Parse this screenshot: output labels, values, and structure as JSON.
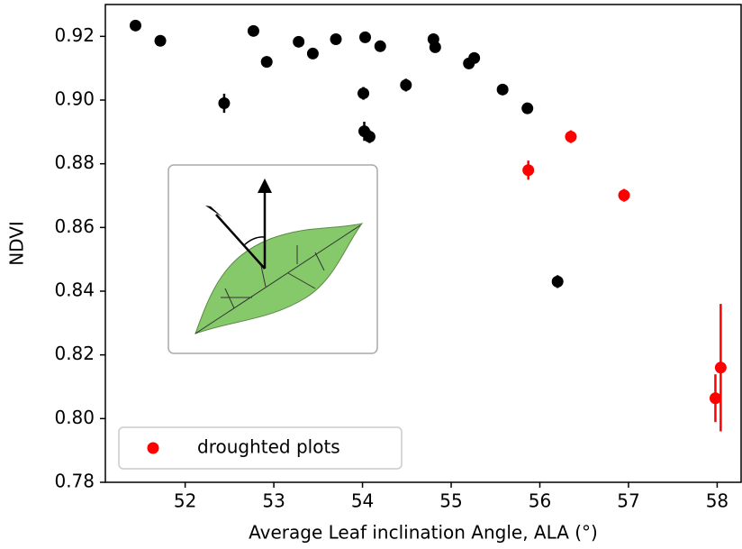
{
  "chart_data": {
    "type": "scatter",
    "x_label": "Average Leaf inclination Angle, ALA (°)",
    "y_label": "NDVI",
    "xlim": [
      51.1,
      58.28
    ],
    "ylim": [
      0.78,
      0.93
    ],
    "xticks": [
      52,
      53,
      54,
      55,
      56,
      57,
      58
    ],
    "yticks": [
      {
        "value": 0.78,
        "label": "0.78"
      },
      {
        "value": 0.8,
        "label": "0.80"
      },
      {
        "value": 0.82,
        "label": "0.82"
      },
      {
        "value": 0.84,
        "label": "0.84"
      },
      {
        "value": 0.86,
        "label": "0.86"
      },
      {
        "value": 0.88,
        "label": "0.88"
      },
      {
        "value": 0.9,
        "label": "0.90"
      },
      {
        "value": 0.92,
        "label": "0.92"
      }
    ],
    "legend": "lower left",
    "series": [
      {
        "color": "#000000",
        "x": [
          51.44,
          51.72,
          52.44,
          52.77,
          52.92,
          53.28,
          53.44,
          53.7,
          54.01,
          54.03,
          54.02,
          54.08,
          54.2,
          54.49,
          54.8,
          54.82,
          55.2,
          55.26,
          55.58,
          55.86,
          56.2
        ],
        "values": [
          0.9234,
          0.9186,
          0.899,
          0.9217,
          0.912,
          0.9183,
          0.9146,
          0.9191,
          0.9021,
          0.9197,
          0.8902,
          0.8885,
          0.9169,
          0.9047,
          0.9191,
          0.9166,
          0.9115,
          0.9132,
          0.9033,
          0.8974,
          0.843
        ],
        "errors": [
          0.001,
          0.001,
          0.003,
          0.001,
          0.001,
          0.001,
          0.001,
          0.001,
          0.002,
          0.001,
          0.003,
          0.002,
          0.001,
          0.002,
          0.001,
          0.001,
          0.001,
          0.001,
          0.001,
          0.0015,
          0.002
        ]
      },
      {
        "name": "droughted plots",
        "color": "#ff0000",
        "x": [
          55.87,
          56.35,
          56.95,
          57.98,
          58.04
        ],
        "values": [
          0.878,
          0.8885,
          0.8701,
          0.8064,
          0.816
        ],
        "errors": [
          0.003,
          0.002,
          0.002,
          0.0075,
          0.02
        ]
      }
    ]
  }
}
